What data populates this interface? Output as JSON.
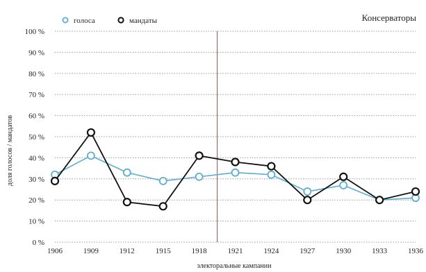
{
  "chart_data": {
    "type": "line",
    "title": "Консерваторы",
    "xlabel": "электоральные кампании",
    "ylabel": "доля голосов / мандатов",
    "x": [
      "1906",
      "1909",
      "1912",
      "1915",
      "1918",
      "1921",
      "1924",
      "1927",
      "1930",
      "1933",
      "1936"
    ],
    "ylim": [
      0,
      100
    ],
    "yticks": [
      "0 %",
      "10 %",
      "20 %",
      "30 %",
      "40 %",
      "50 %",
      "60 %",
      "70 %",
      "80 %",
      "90 %",
      "100 %"
    ],
    "grid": true,
    "legend_position": "top-left",
    "divider_between": [
      "1918",
      "1921"
    ],
    "series": [
      {
        "name": "голоса",
        "color": "#5aaed3",
        "marker_fill": "#ffffff",
        "values": [
          32,
          41,
          33,
          29,
          31,
          33,
          32,
          24,
          27,
          20,
          21
        ]
      },
      {
        "name": "мандаты",
        "color": "#111111",
        "marker_fill": "#ffffff",
        "values": [
          29,
          52,
          19,
          17,
          41,
          38,
          36,
          20,
          31,
          20,
          24
        ]
      }
    ],
    "divider_color": "#a0524a"
  }
}
